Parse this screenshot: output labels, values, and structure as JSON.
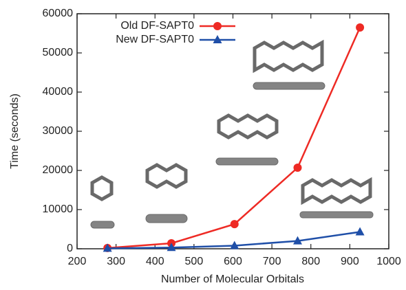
{
  "chart_data": {
    "type": "line",
    "xlabel": "Number of Molecular Orbitals",
    "ylabel": "Time (seconds)",
    "x": [
      278,
      442,
      604,
      766,
      926
    ],
    "series": [
      {
        "name": "Old DF-SAPT0",
        "color": "#ee2a24",
        "marker": "circle",
        "values": [
          200,
          1400,
          6300,
          20700,
          56500
        ]
      },
      {
        "name": "New DF-SAPT0",
        "color": "#1f4fa8",
        "marker": "triangle",
        "values": [
          100,
          300,
          800,
          2000,
          4300
        ]
      }
    ],
    "xlim": [
      200,
      1000
    ],
    "xticks": [
      200,
      300,
      400,
      500,
      600,
      700,
      800,
      900,
      1000
    ],
    "ylim": [
      0,
      60000
    ],
    "yticks": [
      0,
      10000,
      20000,
      30000,
      40000,
      50000,
      60000
    ],
    "legend": "upper left"
  }
}
